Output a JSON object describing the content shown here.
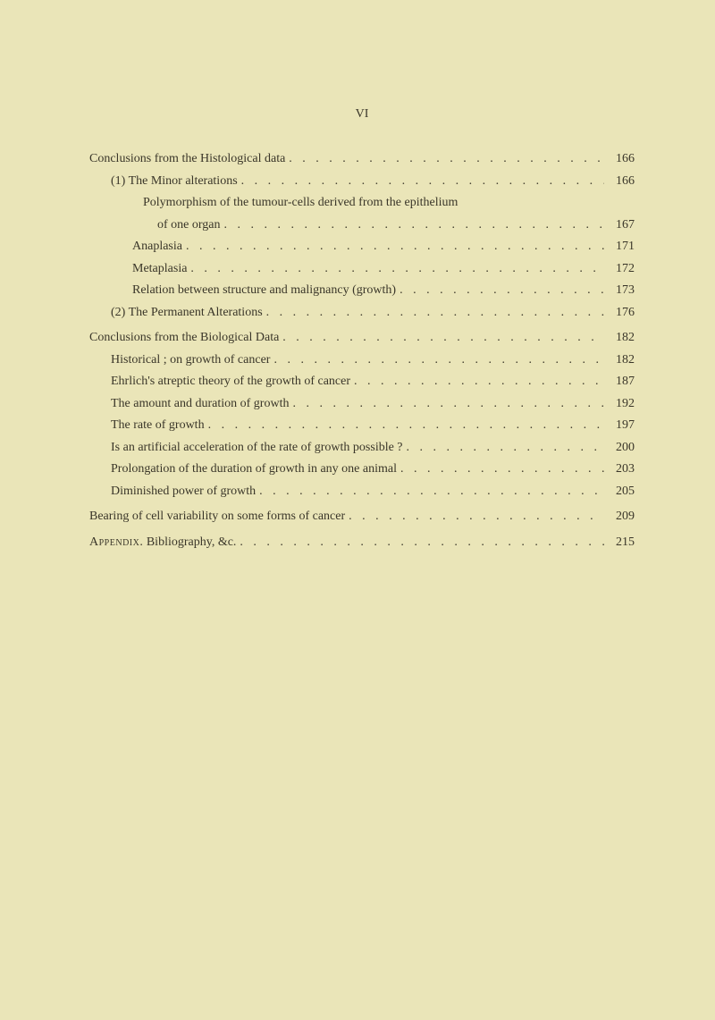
{
  "page_label": "VI",
  "entries": [
    {
      "text": "Conclusions from the Histological data",
      "page": "166",
      "indent": 0
    },
    {
      "text": "(1) The Minor alterations",
      "page": "166",
      "indent": 1
    },
    {
      "text": "Polymorphism of the tumour-cells derived from the epithelium",
      "page": "",
      "indent": 2,
      "nodots": true
    },
    {
      "text": "of one organ",
      "page": "167",
      "indent": 2,
      "continuation": true
    },
    {
      "text": "Anaplasia",
      "page": "171",
      "indent": 3
    },
    {
      "text": "Metaplasia",
      "page": "172",
      "indent": 3
    },
    {
      "text": "Relation between structure and malignancy (growth)",
      "page": "173",
      "indent": 3
    },
    {
      "text": "(2) The Permanent Alterations",
      "page": "176",
      "indent": 1
    },
    {
      "text": "Conclusions from the Biological Data",
      "page": "182",
      "indent": 0,
      "gap": true
    },
    {
      "text": "Historical ; on growth of cancer",
      "page": "182",
      "indent": 1
    },
    {
      "text": "Ehrlich's atreptic theory of the growth of cancer",
      "page": "187",
      "indent": 1
    },
    {
      "text": "The amount and duration of growth",
      "page": "192",
      "indent": 1
    },
    {
      "text": "The rate of growth",
      "page": "197",
      "indent": 1
    },
    {
      "text": "Is an artificial acceleration of the rate of growth possible ?",
      "page": "200",
      "indent": 1
    },
    {
      "text": "Prolongation of the duration of growth in any one animal",
      "page": "203",
      "indent": 1
    },
    {
      "text": "Diminished power of growth",
      "page": "205",
      "indent": 1
    },
    {
      "text": "Bearing of cell variability on some forms of cancer",
      "page": "209",
      "indent": 0,
      "gap": true
    },
    {
      "text": "Appendix.  Bibliography, &c.",
      "page": "215",
      "indent": 0,
      "gap": true,
      "smallcaps_prefix": "Appendix."
    }
  ]
}
